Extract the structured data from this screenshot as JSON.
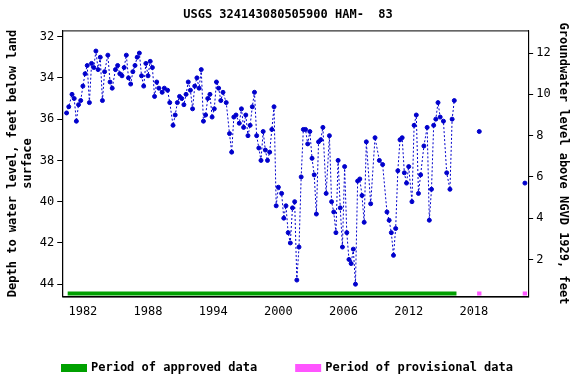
{
  "chart_data": {
    "type": "scatter",
    "title": "USGS 324143080505900 HAM-  83",
    "y_label": [
      "Depth to water level, feet below land",
      "surface"
    ],
    "y2_label": "Groundwater level above NGVD 1929, feet",
    "xlim": [
      1980.1,
      2023.0
    ],
    "xticks": [
      1982,
      1988,
      1994,
      2000,
      2006,
      2012,
      2018
    ],
    "ylim": [
      31.7,
      44.6
    ],
    "yticks": [
      32,
      34,
      36,
      38,
      40,
      42,
      44
    ],
    "y2lim": [
      0.2,
      13.1
    ],
    "y2ticks": [
      2,
      4,
      6,
      8,
      10,
      12
    ],
    "grid": false,
    "legend": "bottom",
    "series": [
      {
        "color": "#0000cc",
        "marker": "circle",
        "line_style": "dotted",
        "x": [
          1980.5,
          1980.7,
          1981.0,
          1981.2,
          1981.4,
          1981.6,
          1981.8,
          1982.0,
          1982.2,
          1982.4,
          1982.6,
          1982.8,
          1983.0,
          1983.2,
          1983.4,
          1983.6,
          1983.8,
          1984.0,
          1984.3,
          1984.5,
          1984.7,
          1985.0,
          1985.2,
          1985.4,
          1985.6,
          1985.8,
          1986.0,
          1986.2,
          1986.4,
          1986.6,
          1986.8,
          1987.0,
          1987.2,
          1987.4,
          1987.6,
          1987.8,
          1988.0,
          1988.2,
          1988.4,
          1988.6,
          1988.8,
          1989.0,
          1989.3,
          1989.5,
          1989.8,
          1990.0,
          1990.3,
          1990.5,
          1990.7,
          1990.9,
          1991.1,
          1991.3,
          1991.5,
          1991.7,
          1991.9,
          1992.1,
          1992.3,
          1992.5,
          1992.7,
          1992.9,
          1993.1,
          1993.3,
          1993.5,
          1993.7,
          1993.9,
          1994.1,
          1994.3,
          1994.5,
          1994.7,
          1994.9,
          1995.2,
          1995.5,
          1995.7,
          1995.9,
          1996.1,
          1996.4,
          1996.6,
          1996.8,
          1997.0,
          1997.2,
          1997.4,
          1997.6,
          1997.8,
          1998.0,
          1998.2,
          1998.4,
          1998.6,
          1998.8,
          1999.0,
          1999.2,
          1999.4,
          1999.6,
          1999.8,
          2000.0,
          2000.3,
          2000.5,
          2000.7,
          2000.9,
          2001.1,
          2001.3,
          2001.5,
          2001.7,
          2001.9,
          2002.1,
          2002.3,
          2002.5,
          2002.7,
          2002.9,
          2003.1,
          2003.3,
          2003.5,
          2003.7,
          2003.9,
          2004.1,
          2004.4,
          2004.7,
          2004.9,
          2005.1,
          2005.3,
          2005.5,
          2005.7,
          2005.9,
          2006.1,
          2006.3,
          2006.5,
          2006.7,
          2006.9,
          2007.1,
          2007.3,
          2007.5,
          2007.7,
          2007.9,
          2008.1,
          2008.5,
          2008.9,
          2009.3,
          2009.6,
          2010.0,
          2010.2,
          2010.4,
          2010.6,
          2010.8,
          2011.0,
          2011.2,
          2011.4,
          2011.6,
          2011.8,
          2012.0,
          2012.3,
          2012.5,
          2012.7,
          2012.9,
          2013.1,
          2013.4,
          2013.7,
          2013.9,
          2014.1,
          2014.3,
          2014.5,
          2014.7,
          2014.9,
          2015.2,
          2015.5,
          2015.8,
          2016.0,
          2016.2,
          null,
          2018.5,
          null,
          2022.7
        ],
        "values": [
          35.7,
          35.4,
          34.8,
          35.0,
          36.1,
          35.3,
          35.1,
          34.4,
          33.8,
          33.4,
          35.2,
          33.3,
          33.5,
          32.7,
          33.6,
          33.0,
          35.1,
          33.7,
          32.9,
          34.2,
          34.5,
          33.6,
          33.4,
          33.8,
          33.9,
          33.5,
          32.9,
          34.0,
          34.3,
          33.7,
          33.4,
          33.0,
          32.8,
          33.9,
          34.4,
          33.3,
          33.9,
          33.2,
          33.5,
          34.9,
          34.2,
          34.5,
          34.7,
          34.5,
          34.6,
          35.2,
          36.3,
          35.8,
          35.2,
          34.9,
          35.0,
          35.3,
          34.8,
          34.2,
          34.6,
          35.5,
          34.4,
          34.0,
          34.5,
          33.6,
          36.1,
          35.8,
          35.0,
          34.8,
          35.9,
          35.5,
          34.2,
          34.5,
          35.1,
          34.7,
          35.2,
          36.7,
          37.6,
          35.9,
          35.8,
          36.2,
          35.5,
          36.4,
          35.8,
          36.8,
          36.3,
          35.4,
          34.7,
          36.8,
          37.4,
          38.0,
          36.6,
          37.5,
          38.0,
          37.6,
          36.5,
          35.4,
          40.2,
          39.3,
          39.6,
          40.8,
          40.2,
          41.5,
          42.0,
          40.3,
          40.0,
          43.8,
          42.2,
          38.8,
          36.5,
          36.5,
          37.2,
          36.6,
          37.9,
          38.7,
          40.6,
          37.1,
          37.0,
          36.4,
          39.6,
          36.8,
          40.0,
          40.5,
          41.5,
          38.0,
          40.3,
          42.2,
          38.3,
          41.5,
          42.8,
          43.0,
          42.3,
          44.0,
          39.0,
          38.9,
          39.7,
          41.0,
          37.1,
          40.1,
          36.9,
          38.0,
          38.2,
          40.5,
          40.9,
          41.5,
          42.6,
          41.3,
          38.5,
          37.0,
          36.9,
          38.6,
          39.1,
          38.3,
          40.0,
          36.3,
          35.8,
          39.6,
          38.7,
          37.3,
          36.4,
          40.9,
          39.4,
          36.3,
          36.0,
          35.2,
          35.9,
          36.1,
          38.6,
          39.4,
          36.0,
          35.1,
          null,
          36.6,
          null,
          39.1
        ]
      },
      {
        "name": "Period of approved data",
        "color": "#00a000",
        "marker": "none",
        "line_style": "solid",
        "x": [
          1980.6,
          2016.4
        ],
        "values": [
          44.45,
          44.45
        ]
      },
      {
        "name": "Period of provisional data",
        "color": "#ff55ff",
        "marker": "none",
        "line_style": "solid",
        "x": [
          2018.3,
          2018.7,
          null,
          2022.5,
          2022.9
        ],
        "values": [
          44.45,
          44.45,
          null,
          44.45,
          44.45
        ]
      }
    ]
  }
}
